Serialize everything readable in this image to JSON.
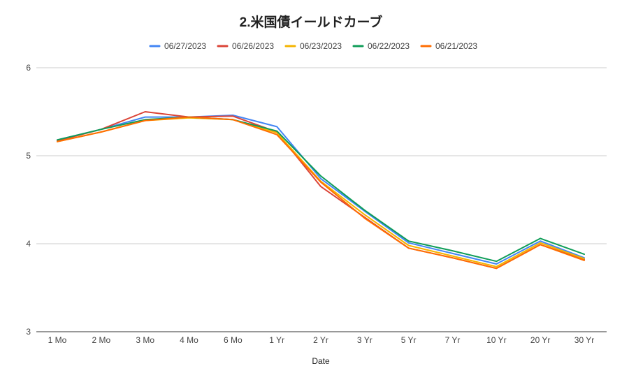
{
  "chart_data": {
    "type": "line",
    "title": "2.米国債イールドカーブ",
    "xlabel": "Date",
    "ylabel": "",
    "ylim": [
      3,
      6
    ],
    "yticks": [
      "3",
      "4",
      "5",
      "6"
    ],
    "grid": true,
    "legend_position": "top",
    "categories": [
      "1 Mo",
      "2 Mo",
      "3 Mo",
      "4 Mo",
      "6 Mo",
      "1 Yr",
      "2 Yr",
      "3 Yr",
      "5 Yr",
      "7 Yr",
      "10 Yr",
      "20 Yr",
      "30 Yr"
    ],
    "series": [
      {
        "name": "06/27/2023",
        "color": "#4285f4",
        "values": [
          5.18,
          5.3,
          5.44,
          5.44,
          5.46,
          5.33,
          4.74,
          4.37,
          4.01,
          3.89,
          3.77,
          4.03,
          3.84
        ]
      },
      {
        "name": "06/26/2023",
        "color": "#db4437",
        "values": [
          5.17,
          5.3,
          5.5,
          5.44,
          5.45,
          5.27,
          4.65,
          4.3,
          3.95,
          3.84,
          3.72,
          3.99,
          3.82
        ]
      },
      {
        "name": "06/23/2023",
        "color": "#f4b400",
        "values": [
          5.16,
          5.27,
          5.4,
          5.43,
          5.41,
          5.26,
          4.71,
          4.33,
          3.98,
          3.86,
          3.74,
          4.01,
          3.83
        ]
      },
      {
        "name": "06/22/2023",
        "color": "#0f9d58",
        "values": [
          5.18,
          5.3,
          5.41,
          5.44,
          5.41,
          5.28,
          4.77,
          4.38,
          4.03,
          3.92,
          3.8,
          4.06,
          3.88
        ]
      },
      {
        "name": "06/21/2023",
        "color": "#ff6d01",
        "values": [
          5.16,
          5.27,
          5.4,
          5.44,
          5.41,
          5.24,
          4.7,
          4.29,
          3.95,
          3.84,
          3.72,
          3.99,
          3.81
        ]
      }
    ]
  }
}
